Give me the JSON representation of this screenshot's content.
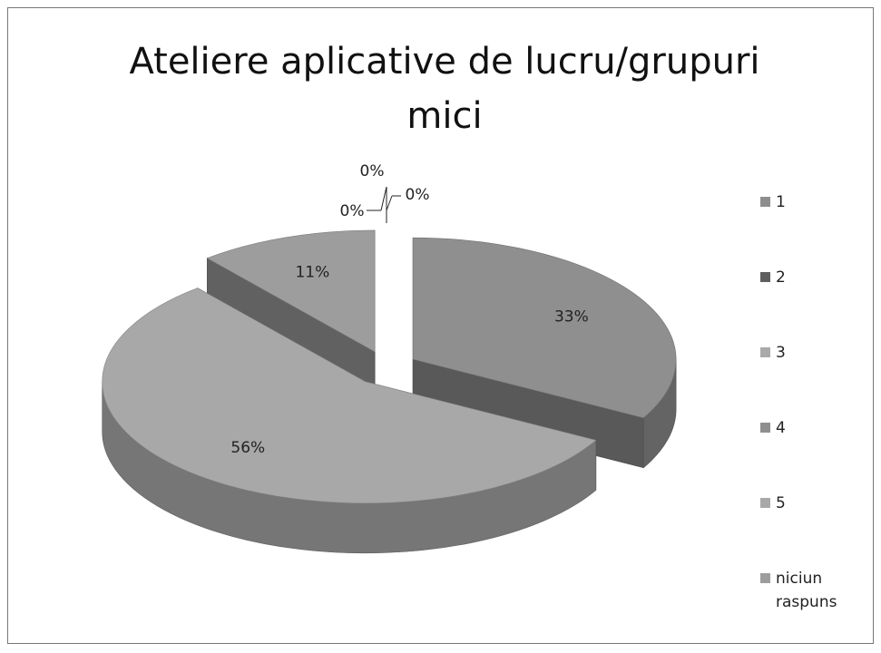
{
  "chart_data": {
    "type": "pie3d",
    "title": "Ateliere aplicative de lucru/grupuri mici",
    "categories": [
      "1",
      "2",
      "3",
      "4",
      "5",
      "niciun raspuns"
    ],
    "values": [
      0,
      0,
      0,
      33,
      56,
      11
    ],
    "value_labels": [
      "0%",
      "0%",
      "0%",
      "33%",
      "56%",
      "11%"
    ],
    "colors": [
      "#8e8e8e",
      "#5e5e5e",
      "#a9a9a9",
      "#8f8f8f",
      "#a8a8a8",
      "#9d9d9d"
    ],
    "legend": "right"
  }
}
